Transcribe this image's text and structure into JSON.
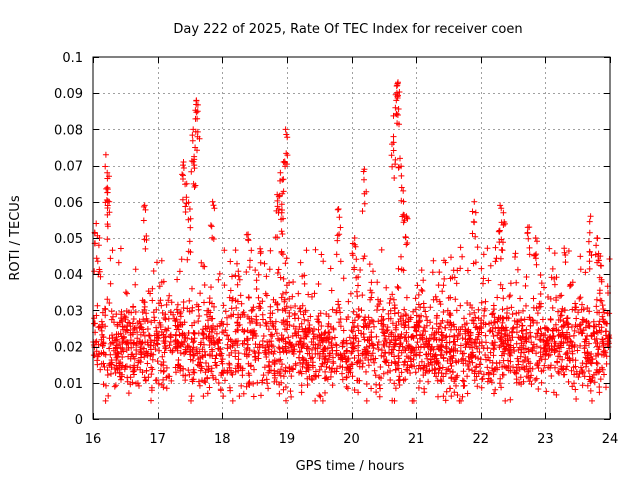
{
  "chart_data": {
    "type": "scatter",
    "title": "Day 222 of 2025, Rate Of TEC Index for receiver coen",
    "xlabel": "GPS time / hours",
    "ylabel": "ROTI / TECUs",
    "xlim": [
      16,
      24
    ],
    "ylim": [
      0,
      0.1
    ],
    "xticks": [
      "16",
      "17",
      "18",
      "19",
      "20",
      "21",
      "22",
      "23",
      "24"
    ],
    "yticks": [
      "0",
      "0.01",
      "0.02",
      "0.03",
      "0.04",
      "0.05",
      "0.06",
      "0.07",
      "0.08",
      "0.09",
      "0.1"
    ],
    "grid": true,
    "marker": "+",
    "color": "#ff0000",
    "series": [
      {
        "name": "ROTI",
        "band": {
          "low": 0.005,
          "high": 0.045,
          "typical_center": 0.02
        },
        "n_points": 2600,
        "highlights": [
          {
            "x": 16.2,
            "y": 0.073
          },
          {
            "x": 16.22,
            "y": 0.068
          },
          {
            "x": 16.25,
            "y": 0.06
          },
          {
            "x": 16.05,
            "y": 0.054
          },
          {
            "x": 16.1,
            "y": 0.05
          },
          {
            "x": 16.8,
            "y": 0.059
          },
          {
            "x": 17.4,
            "y": 0.071
          },
          {
            "x": 17.45,
            "y": 0.065
          },
          {
            "x": 17.55,
            "y": 0.08
          },
          {
            "x": 17.6,
            "y": 0.088
          },
          {
            "x": 17.62,
            "y": 0.085
          },
          {
            "x": 17.58,
            "y": 0.075
          },
          {
            "x": 17.5,
            "y": 0.058
          },
          {
            "x": 17.85,
            "y": 0.06
          },
          {
            "x": 18.4,
            "y": 0.051
          },
          {
            "x": 18.9,
            "y": 0.068
          },
          {
            "x": 18.95,
            "y": 0.071
          },
          {
            "x": 18.98,
            "y": 0.08
          },
          {
            "x": 18.85,
            "y": 0.062
          },
          {
            "x": 18.92,
            "y": 0.057
          },
          {
            "x": 19.8,
            "y": 0.058
          },
          {
            "x": 20.2,
            "y": 0.069
          },
          {
            "x": 20.05,
            "y": 0.05
          },
          {
            "x": 20.65,
            "y": 0.078
          },
          {
            "x": 20.68,
            "y": 0.086
          },
          {
            "x": 20.7,
            "y": 0.092
          },
          {
            "x": 20.72,
            "y": 0.093
          },
          {
            "x": 20.75,
            "y": 0.072
          },
          {
            "x": 20.8,
            "y": 0.063
          },
          {
            "x": 20.85,
            "y": 0.056
          },
          {
            "x": 21.9,
            "y": 0.06
          },
          {
            "x": 22.3,
            "y": 0.059
          },
          {
            "x": 22.35,
            "y": 0.057
          },
          {
            "x": 22.75,
            "y": 0.053
          },
          {
            "x": 22.85,
            "y": 0.05
          },
          {
            "x": 23.7,
            "y": 0.056
          },
          {
            "x": 23.8,
            "y": 0.05
          },
          {
            "x": 23.85,
            "y": 0.045
          }
        ]
      }
    ]
  }
}
